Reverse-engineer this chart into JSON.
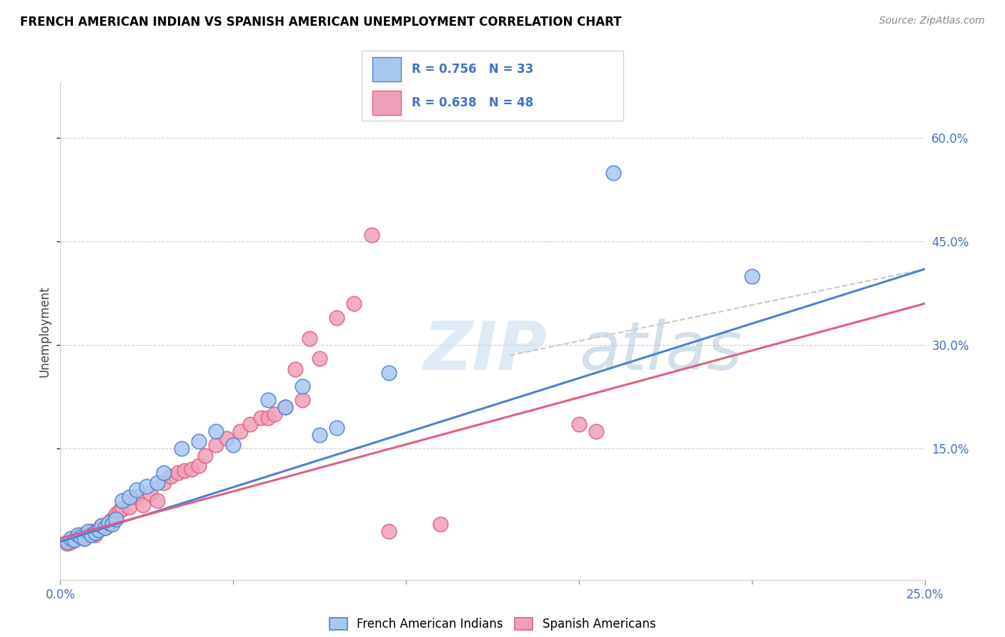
{
  "title": "FRENCH AMERICAN INDIAN VS SPANISH AMERICAN UNEMPLOYMENT CORRELATION CHART",
  "source": "Source: ZipAtlas.com",
  "ylabel": "Unemployment",
  "ytick_labels": [
    "15.0%",
    "30.0%",
    "45.0%",
    "60.0%"
  ],
  "ytick_positions": [
    0.15,
    0.3,
    0.45,
    0.6
  ],
  "xmin": 0.0,
  "xmax": 0.25,
  "ymin": -0.04,
  "ymax": 0.68,
  "watermark_zip": "ZIP",
  "watermark_atlas": "atlas",
  "legend_label1": "French American Indians",
  "legend_label2": "Spanish Americans",
  "color_blue": "#A8C8F0",
  "color_pink": "#F0A0B8",
  "line_color_blue": "#5080D0",
  "line_color_pink": "#E06080",
  "line_color_dashed": "#C8C8C8",
  "blue_scatter_x": [
    0.002,
    0.003,
    0.004,
    0.005,
    0.006,
    0.007,
    0.008,
    0.009,
    0.01,
    0.011,
    0.012,
    0.013,
    0.014,
    0.015,
    0.016,
    0.018,
    0.02,
    0.022,
    0.025,
    0.028,
    0.03,
    0.035,
    0.04,
    0.045,
    0.05,
    0.06,
    0.065,
    0.07,
    0.075,
    0.08,
    0.095,
    0.16,
    0.2
  ],
  "blue_scatter_y": [
    0.015,
    0.02,
    0.018,
    0.025,
    0.022,
    0.02,
    0.03,
    0.025,
    0.028,
    0.032,
    0.038,
    0.035,
    0.042,
    0.04,
    0.048,
    0.075,
    0.08,
    0.09,
    0.095,
    0.1,
    0.115,
    0.15,
    0.16,
    0.175,
    0.155,
    0.22,
    0.21,
    0.24,
    0.17,
    0.18,
    0.26,
    0.55,
    0.4
  ],
  "pink_scatter_x": [
    0.002,
    0.003,
    0.004,
    0.005,
    0.006,
    0.007,
    0.008,
    0.009,
    0.01,
    0.011,
    0.012,
    0.013,
    0.014,
    0.015,
    0.016,
    0.017,
    0.018,
    0.02,
    0.022,
    0.024,
    0.026,
    0.028,
    0.03,
    0.032,
    0.034,
    0.036,
    0.038,
    0.04,
    0.042,
    0.045,
    0.048,
    0.052,
    0.055,
    0.058,
    0.06,
    0.062,
    0.065,
    0.068,
    0.07,
    0.072,
    0.075,
    0.08,
    0.085,
    0.09,
    0.095,
    0.11,
    0.15,
    0.155
  ],
  "pink_scatter_y": [
    0.012,
    0.015,
    0.018,
    0.022,
    0.025,
    0.02,
    0.025,
    0.03,
    0.025,
    0.032,
    0.038,
    0.035,
    0.04,
    0.048,
    0.055,
    0.06,
    0.062,
    0.065,
    0.08,
    0.068,
    0.085,
    0.075,
    0.1,
    0.11,
    0.115,
    0.118,
    0.12,
    0.125,
    0.14,
    0.155,
    0.165,
    0.175,
    0.185,
    0.195,
    0.195,
    0.2,
    0.21,
    0.265,
    0.22,
    0.31,
    0.28,
    0.34,
    0.36,
    0.46,
    0.03,
    0.04,
    0.185,
    0.175
  ],
  "blue_line_x": [
    0.0,
    0.25
  ],
  "blue_line_y": [
    0.015,
    0.41
  ],
  "pink_line_x": [
    0.0,
    0.25
  ],
  "pink_line_y": [
    0.02,
    0.36
  ],
  "dashed_line_x": [
    0.13,
    0.25
  ],
  "dashed_line_y": [
    0.285,
    0.41
  ]
}
